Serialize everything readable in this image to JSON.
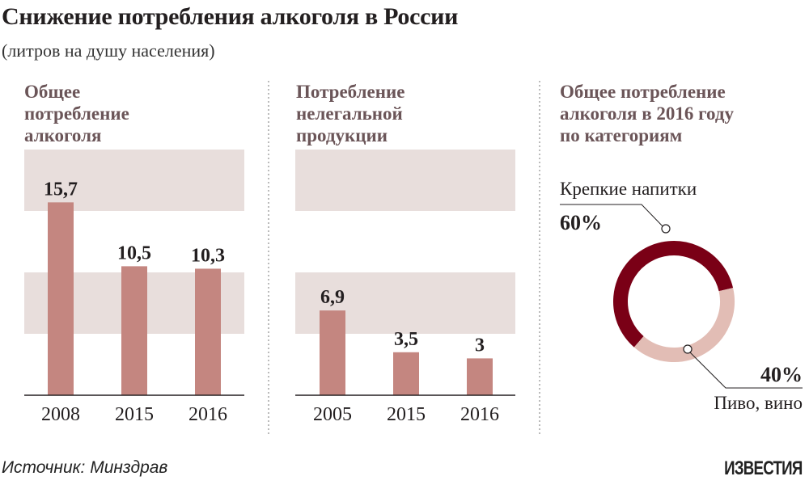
{
  "title": "Снижение потребления алкоголя в России",
  "subtitle": "(литров на душу населения)",
  "source": "Источник: Минздрав",
  "logo": "ИЗВЕСТИЯ",
  "colors": {
    "bar": "#c48680",
    "band": "#e8dedc",
    "dark": "#7a0016",
    "light": "#e2bdb5"
  },
  "chart_data": [
    {
      "type": "bar",
      "title": "Общее\nпотребление\nалкоголя",
      "categories": [
        "2008",
        "2015",
        "2016"
      ],
      "values": [
        15.7,
        10.5,
        10.3
      ],
      "labels": [
        "15,7",
        "10,5",
        "10,3"
      ]
    },
    {
      "type": "bar",
      "title": "Потребление\nнелегальной\nпродукции",
      "categories": [
        "2005",
        "2015",
        "2016"
      ],
      "values": [
        6.9,
        3.5,
        3
      ],
      "labels": [
        "6,9",
        "3,5",
        "3"
      ]
    },
    {
      "type": "pie",
      "title": "Общее потребление\nалкоголя в 2016 году\nпо категориям",
      "slices": [
        {
          "name": "Крепкие напитки",
          "value": 60,
          "label": "60%"
        },
        {
          "name": "Пиво, вино",
          "value": 40,
          "label": "40%"
        }
      ]
    }
  ]
}
